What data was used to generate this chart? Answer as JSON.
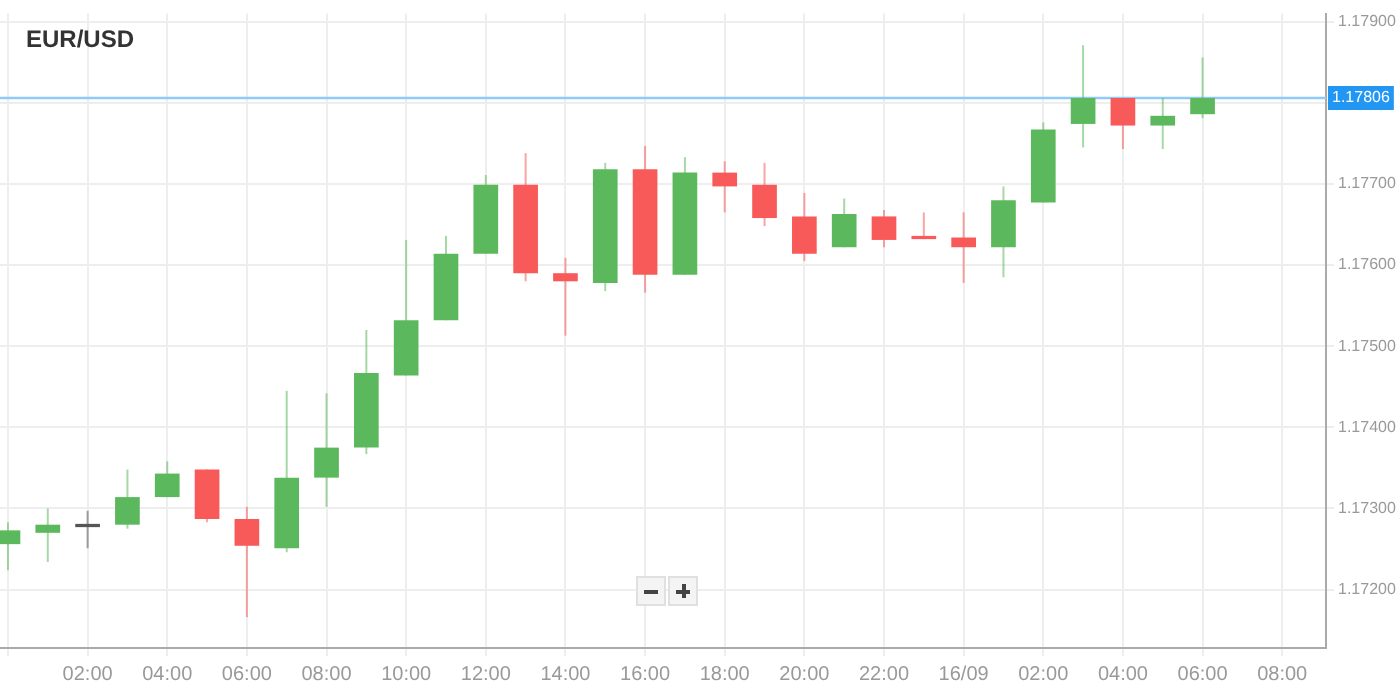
{
  "chart_data": {
    "type": "candlestick",
    "title": "EUR/USD",
    "x": [
      "--09-15T00:00",
      "--09-15T01:00",
      "--09-15T02:00",
      "--09-15T03:00",
      "--09-15T04:00",
      "--09-15T05:00",
      "--09-15T06:00",
      "--09-15T07:00",
      "--09-15T08:00",
      "--09-15T09:00",
      "--09-15T10:00",
      "--09-15T11:00",
      "--09-15T12:00",
      "--09-15T13:00",
      "--09-15T14:00",
      "--09-15T15:00",
      "--09-15T16:00",
      "--09-15T17:00",
      "--09-15T18:00",
      "--09-15T19:00",
      "--09-15T20:00",
      "--09-15T21:00",
      "--09-15T22:00",
      "--09-15T23:00",
      "--09-16T00:00",
      "--09-16T01:00",
      "--09-16T02:00",
      "--09-16T03:00",
      "--09-16T04:00",
      "--09-16T05:00",
      "--09-16T06:00"
    ],
    "ohlc": [
      [
        1.17256,
        1.17283,
        1.17224,
        1.17273
      ],
      [
        1.1727,
        1.173,
        1.17234,
        1.1728
      ],
      [
        1.17281,
        1.17297,
        1.17251,
        1.17277
      ],
      [
        1.1728,
        1.17348,
        1.17275,
        1.17314
      ],
      [
        1.17314,
        1.17358,
        1.17314,
        1.17343
      ],
      [
        1.17348,
        1.17348,
        1.17283,
        1.17287
      ],
      [
        1.17287,
        1.17302,
        1.17166,
        1.17254
      ],
      [
        1.17251,
        1.17445,
        1.17246,
        1.17338
      ],
      [
        1.17338,
        1.17442,
        1.17302,
        1.17375
      ],
      [
        1.17375,
        1.1752,
        1.17367,
        1.17467
      ],
      [
        1.17464,
        1.17631,
        1.17464,
        1.17532
      ],
      [
        1.17532,
        1.17636,
        1.17532,
        1.17614
      ],
      [
        1.17614,
        1.17711,
        1.17614,
        1.17699
      ],
      [
        1.17699,
        1.17738,
        1.1758,
        1.1759
      ],
      [
        1.1759,
        1.17609,
        1.17513,
        1.1758
      ],
      [
        1.17578,
        1.17726,
        1.17568,
        1.17718
      ],
      [
        1.17718,
        1.17747,
        1.17566,
        1.17588
      ],
      [
        1.17588,
        1.17733,
        1.17588,
        1.17714
      ],
      [
        1.17714,
        1.17728,
        1.17665,
        1.17697
      ],
      [
        1.17699,
        1.17726,
        1.17648,
        1.17658
      ],
      [
        1.1766,
        1.17689,
        1.17605,
        1.17614
      ],
      [
        1.17622,
        1.17682,
        1.17622,
        1.17663
      ],
      [
        1.1766,
        1.17668,
        1.17622,
        1.17631
      ],
      [
        1.17636,
        1.17665,
        1.17632,
        1.17632
      ],
      [
        1.17634,
        1.17665,
        1.17578,
        1.17622
      ],
      [
        1.17622,
        1.17697,
        1.17585,
        1.1768
      ],
      [
        1.17677,
        1.17776,
        1.17677,
        1.17767
      ],
      [
        1.17774,
        1.17871,
        1.17745,
        1.17806
      ],
      [
        1.17806,
        1.17806,
        1.17743,
        1.17772
      ],
      [
        1.17772,
        1.17806,
        1.17743,
        1.17784
      ],
      [
        1.17786,
        1.17856,
        1.17781,
        1.17806
      ]
    ],
    "colors": [
      "#5cb85c",
      "#5cb85c",
      "#555555",
      "#5cb85c",
      "#5cb85c",
      "#f85a5a",
      "#f85a5a",
      "#5cb85c",
      "#5cb85c",
      "#5cb85c",
      "#5cb85c",
      "#5cb85c",
      "#5cb85c",
      "#f85a5a",
      "#f85a5a",
      "#5cb85c",
      "#f85a5a",
      "#5cb85c",
      "#f85a5a",
      "#f85a5a",
      "#f85a5a",
      "#5cb85c",
      "#f85a5a",
      "#f85a5a",
      "#f85a5a",
      "#5cb85c",
      "#5cb85c",
      "#5cb85c",
      "#f85a5a",
      "#5cb85c",
      "#5cb85c"
    ],
    "xlim": [
      "--09-14T23:48",
      "--09-16T09:06"
    ],
    "ylim": [
      1.17128,
      1.1791
    ],
    "xticks": [
      {
        "value": "--09-15T00:00",
        "label": null
      },
      {
        "value": "--09-15T02:00",
        "label": "02:00"
      },
      {
        "value": "--09-15T04:00",
        "label": "04:00"
      },
      {
        "value": "--09-15T06:00",
        "label": "06:00"
      },
      {
        "value": "--09-15T08:00",
        "label": "08:00"
      },
      {
        "value": "--09-15T10:00",
        "label": "10:00"
      },
      {
        "value": "--09-15T12:00",
        "label": "12:00"
      },
      {
        "value": "--09-15T14:00",
        "label": "14:00"
      },
      {
        "value": "--09-15T16:00",
        "label": "16:00"
      },
      {
        "value": "--09-15T18:00",
        "label": "18:00"
      },
      {
        "value": "--09-15T20:00",
        "label": "20:00"
      },
      {
        "value": "--09-15T22:00",
        "label": "22:00"
      },
      {
        "value": "--09-16T00:00",
        "label": "16/09"
      },
      {
        "value": "--09-16T02:00",
        "label": "02:00"
      },
      {
        "value": "--09-16T04:00",
        "label": "04:00"
      },
      {
        "value": "--09-16T06:00",
        "label": "06:00"
      },
      {
        "value": "--09-16T08:00",
        "label": "08:00"
      }
    ],
    "yticks": [
      {
        "value": 1.172,
        "label": "1.17200"
      },
      {
        "value": 1.173,
        "label": "1.17300"
      },
      {
        "value": 1.174,
        "label": "1.17400"
      },
      {
        "value": 1.175,
        "label": "1.17500"
      },
      {
        "value": 1.176,
        "label": "1.17600"
      },
      {
        "value": 1.177,
        "label": "1.17700"
      },
      {
        "value": 1.178,
        "label": null
      },
      {
        "value": 1.179,
        "label": "1.17900"
      }
    ],
    "grid": true,
    "ref_lines": [
      {
        "axis": "y",
        "value": 1.17806,
        "label": "1.17806",
        "color": "#90caf9"
      }
    ]
  }
}
